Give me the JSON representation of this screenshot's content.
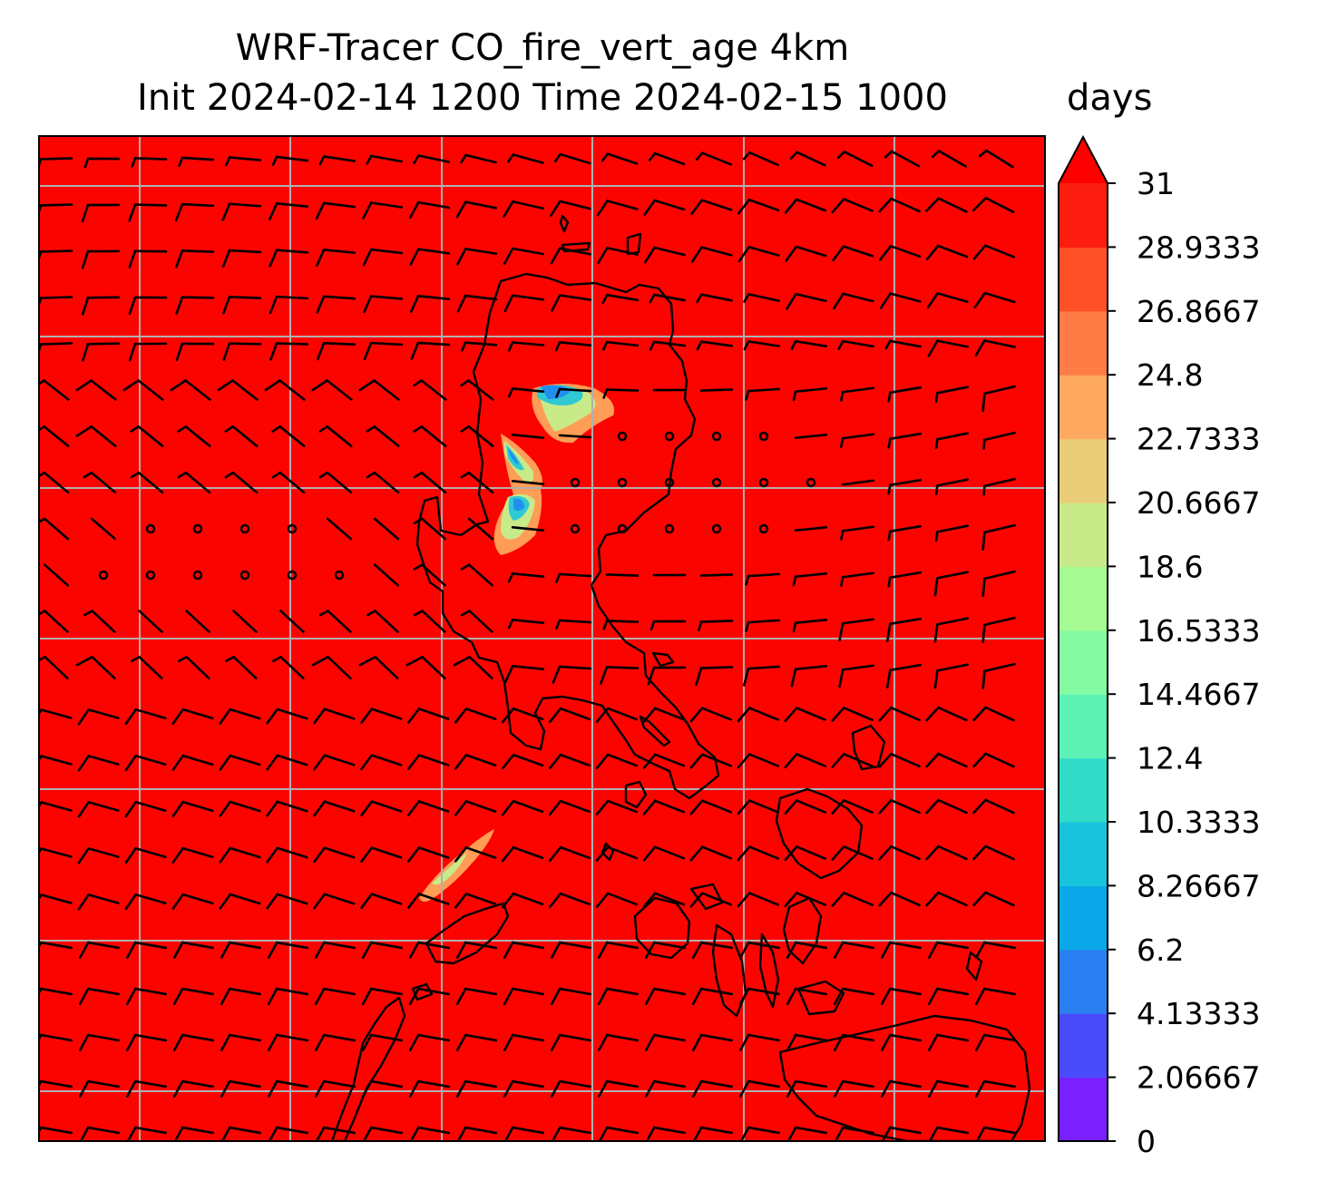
{
  "figure": {
    "title_line1": "WRF-Tracer CO_fire_vert_age 4km",
    "title_line2": "Init 2024-02-14 1200 Time 2024-02-15 1000",
    "colorbar_unit": "days"
  },
  "colorbar": {
    "min": 0,
    "max": 31,
    "extend": "max",
    "tick_labels": [
      "0",
      "2.06667",
      "4.13333",
      "6.2",
      "8.26667",
      "10.3333",
      "12.4",
      "14.4667",
      "16.5333",
      "18.6",
      "20.6667",
      "22.7333",
      "24.8",
      "26.8667",
      "28.9333",
      "31"
    ],
    "level_colors": [
      "#7a1ffd",
      "#4a4bfb",
      "#2a7ff0",
      "#0aa8e8",
      "#18c4dc",
      "#30dcc8",
      "#5cf2b6",
      "#84fba2",
      "#a6fb94",
      "#c8ea88",
      "#e8cc78",
      "#ffa860",
      "#ff7c46",
      "#ff5028",
      "#fc1d10"
    ],
    "over_color": "#ff0000"
  },
  "map": {
    "field_color": "#fb0400",
    "coastline_color": "#000000",
    "gridline_color": "#b0b0b0",
    "barb_color": "#000000",
    "plume_colors": [
      "#ff9c55",
      "#c8ea88",
      "#2ec9d3",
      "#1f8ff0"
    ]
  }
}
